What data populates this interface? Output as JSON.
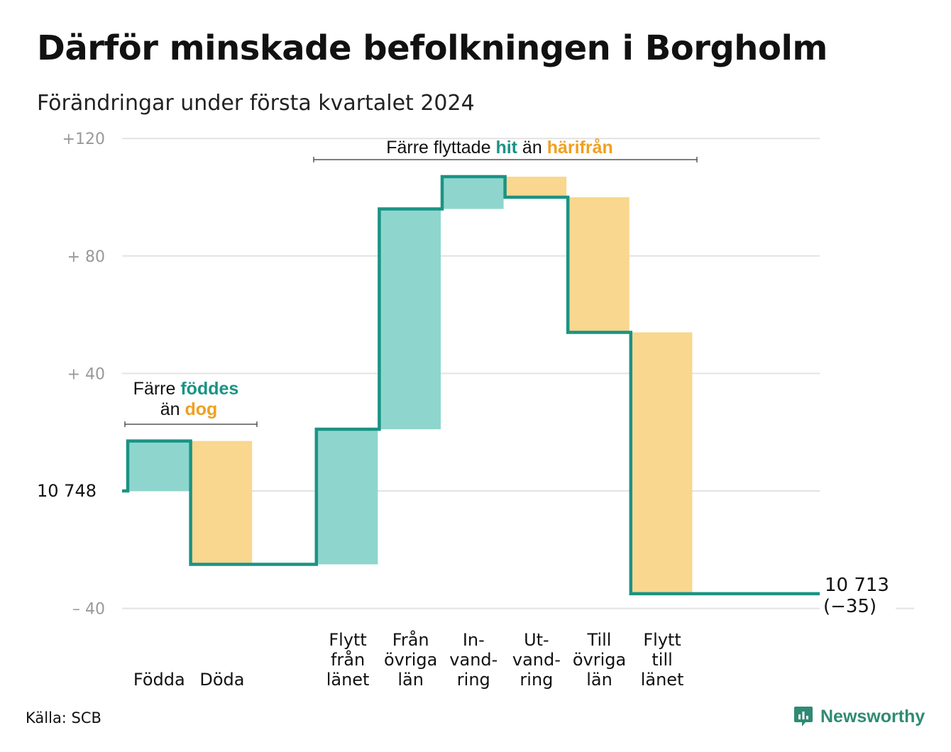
{
  "title": "Därför minskade befolkningen i Borgholm",
  "subtitle": "Förändringar under första kvartalet 2024",
  "source": "Källa: SCB",
  "brand": "Newsworthy",
  "colors": {
    "teal_line": "#1a9384",
    "teal_fill": "#8ed6cd",
    "orange_fill": "#f9d78e",
    "orange_text": "#f0a020",
    "teal_text": "#1a9384",
    "grid": "#e3e3e3",
    "tick": "#999999"
  },
  "annotations": {
    "births": {
      "line1_prefix": "Färre ",
      "line1_highlight": "föddes",
      "line2_prefix": "än ",
      "line2_highlight": "dog"
    },
    "moves": {
      "prefix": "Färre flyttade ",
      "highlight1": "hit",
      "middle": " än ",
      "highlight2": "härifrån"
    }
  },
  "chart_data": {
    "type": "waterfall",
    "title": "Därför minskade befolkningen i Borgholm",
    "subtitle": "Förändringar under första kvartalet 2024",
    "ylim": [
      -40,
      120
    ],
    "yticks": [
      {
        "value": 120,
        "label": "+120"
      },
      {
        "value": 80,
        "label": "+  80"
      },
      {
        "value": 40,
        "label": "+  40"
      },
      {
        "value": -40,
        "label": "–  40"
      }
    ],
    "start": {
      "value": 0,
      "label": "10  748"
    },
    "end": {
      "value": -35,
      "label": "10 713",
      "sublabel": "(−35)"
    },
    "steps": [
      {
        "label": "Födda",
        "delta": 17,
        "kind": "in"
      },
      {
        "label": "Döda",
        "delta": -42,
        "kind": "out"
      },
      {
        "label": "",
        "delta": 0,
        "kind": "gap"
      },
      {
        "label": "Flytt från länet",
        "delta": 46,
        "kind": "in"
      },
      {
        "label": "Från övriga län",
        "delta": 75,
        "kind": "in"
      },
      {
        "label": "In-vand-ring",
        "delta": 11,
        "kind": "in"
      },
      {
        "label": "Ut-vand-ring",
        "delta": -7,
        "kind": "out"
      },
      {
        "label": "Till övriga län",
        "delta": -46,
        "kind": "out"
      },
      {
        "label": "Flytt till länet",
        "delta": -89,
        "kind": "out"
      }
    ],
    "category_labels": [
      [
        "Födda"
      ],
      [
        "Döda"
      ],
      [],
      [
        "Flytt",
        "från",
        "länet"
      ],
      [
        "Från",
        "övriga",
        "län"
      ],
      [
        "In-",
        "vand-",
        "ring"
      ],
      [
        "Ut-",
        "vand-",
        "ring"
      ],
      [
        "Till",
        "övriga",
        "län"
      ],
      [
        "Flytt",
        "till",
        "länet"
      ]
    ],
    "grid": true
  }
}
